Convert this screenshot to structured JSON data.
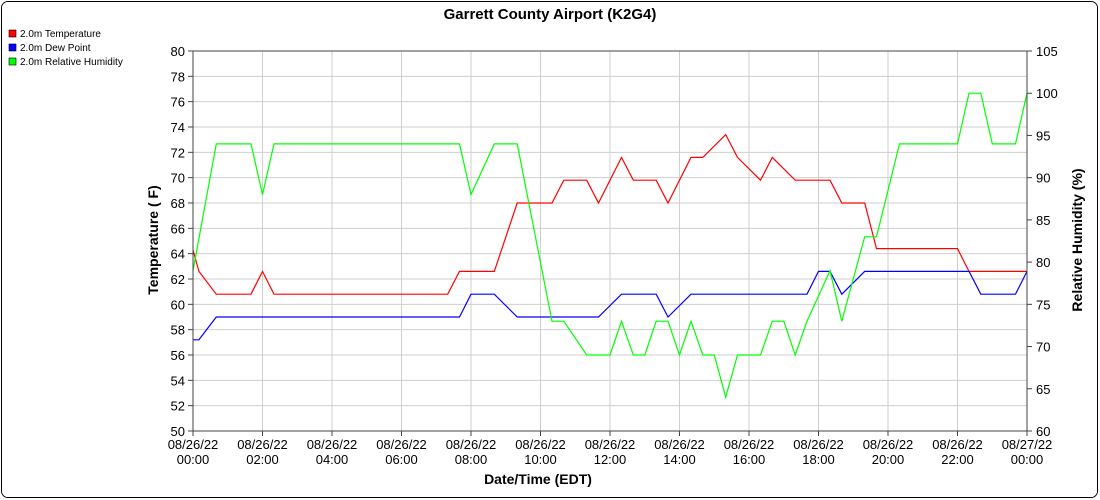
{
  "chart_data": {
    "type": "line",
    "title": "Garrett County Airport (K2G4)",
    "xlabel": "Date/Time (EDT)",
    "ylabel_left": "Temperature ( F)",
    "ylabel_right": "Relative Humidity (%)",
    "grid": true,
    "legend_position": "top-left",
    "y_left": {
      "min": 50,
      "max": 80,
      "ticks": [
        "50",
        "52",
        "54",
        "56",
        "58",
        "60",
        "62",
        "64",
        "66",
        "68",
        "70",
        "72",
        "74",
        "76",
        "78",
        "80"
      ]
    },
    "y_right": {
      "min": 60,
      "max": 105,
      "ticks": [
        "60",
        "65",
        "70",
        "75",
        "80",
        "85",
        "90",
        "95",
        "100",
        "105"
      ]
    },
    "x_range_hours": [
      0,
      24
    ],
    "x_ticks": [
      {
        "h": 0,
        "date": "08/26/22",
        "time": "00:00"
      },
      {
        "h": 2,
        "date": "08/26/22",
        "time": "02:00"
      },
      {
        "h": 4,
        "date": "08/26/22",
        "time": "04:00"
      },
      {
        "h": 6,
        "date": "08/26/22",
        "time": "06:00"
      },
      {
        "h": 8,
        "date": "08/26/22",
        "time": "08:00"
      },
      {
        "h": 10,
        "date": "08/26/22",
        "time": "10:00"
      },
      {
        "h": 12,
        "date": "08/26/22",
        "time": "12:00"
      },
      {
        "h": 14,
        "date": "08/26/22",
        "time": "14:00"
      },
      {
        "h": 16,
        "date": "08/26/22",
        "time": "16:00"
      },
      {
        "h": 18,
        "date": "08/26/22",
        "time": "18:00"
      },
      {
        "h": 20,
        "date": "08/26/22",
        "time": "20:00"
      },
      {
        "h": 22,
        "date": "08/26/22",
        "time": "22:00"
      },
      {
        "h": 24,
        "date": "08/27/22",
        "time": "00:00"
      }
    ],
    "series": [
      {
        "name": "2.0m Temperature",
        "color": "#ff0000",
        "axis": "left",
        "x": [
          0,
          0.17,
          0.67,
          1.67,
          2.0,
          2.33,
          7.33,
          7.67,
          8.67,
          9.33,
          9.67,
          10.33,
          10.67,
          11.33,
          11.67,
          12.33,
          12.67,
          13.33,
          13.67,
          14.33,
          14.67,
          15.33,
          15.67,
          16.33,
          16.67,
          17.33,
          17.67,
          18.33,
          18.67,
          19.33,
          19.67,
          20.33,
          20.67,
          21.67,
          22.0,
          22.33,
          23.67,
          24.0
        ],
        "values": [
          64.3,
          62.6,
          60.8,
          60.8,
          62.6,
          60.8,
          60.8,
          62.6,
          62.6,
          68.0,
          68.0,
          68.0,
          69.8,
          69.8,
          68.0,
          71.6,
          69.8,
          69.8,
          68.0,
          71.6,
          71.6,
          73.4,
          71.6,
          69.8,
          71.6,
          69.8,
          69.8,
          69.8,
          68.0,
          68.0,
          64.4,
          64.4,
          64.4,
          64.4,
          64.4,
          62.6,
          62.6,
          62.6
        ]
      },
      {
        "name": "2.0m Dew Point",
        "color": "#0000ff",
        "axis": "left",
        "x": [
          0,
          0.17,
          0.67,
          1.67,
          2.33,
          7.33,
          7.67,
          8.0,
          8.67,
          9.33,
          10.33,
          11.33,
          11.67,
          12.33,
          12.67,
          13.33,
          13.67,
          14.33,
          14.67,
          15.33,
          15.67,
          16.33,
          16.67,
          17.33,
          17.67,
          18.0,
          18.33,
          18.67,
          19.33,
          20.0,
          21.33,
          22.0,
          22.33,
          22.67,
          23.67,
          24.0
        ],
        "values": [
          57.2,
          57.2,
          59.0,
          59.0,
          59.0,
          59.0,
          59.0,
          60.8,
          60.8,
          59.0,
          59.0,
          59.0,
          59.0,
          60.8,
          60.8,
          60.8,
          59.0,
          60.8,
          60.8,
          60.8,
          60.8,
          60.8,
          60.8,
          60.8,
          60.8,
          62.6,
          62.6,
          60.8,
          62.6,
          62.6,
          62.6,
          62.6,
          62.6,
          60.8,
          60.8,
          62.6
        ]
      },
      {
        "name": "2.0m Relative Humidity",
        "color": "#00ff00",
        "axis": "right",
        "x": [
          0,
          0.67,
          1.67,
          2.0,
          2.33,
          7.33,
          7.67,
          8.0,
          8.67,
          9.33,
          10.33,
          10.67,
          11.33,
          11.67,
          12.0,
          12.33,
          12.67,
          13.0,
          13.33,
          13.67,
          14.0,
          14.33,
          14.67,
          15.0,
          15.33,
          15.67,
          16.33,
          16.67,
          17.0,
          17.33,
          17.67,
          18.33,
          18.67,
          19.33,
          19.67,
          20.33,
          21.33,
          21.67,
          22.0,
          22.33,
          22.67,
          23.0,
          23.67,
          24.0
        ],
        "values": [
          79.0,
          94.0,
          94.0,
          88.0,
          94.0,
          94.0,
          94.0,
          88.0,
          94.0,
          94.0,
          73.0,
          73.0,
          69.0,
          69.0,
          69.0,
          73.0,
          69.0,
          69.0,
          73.0,
          73.0,
          69.0,
          73.0,
          69.0,
          69.0,
          64.0,
          69.0,
          69.0,
          73.0,
          73.0,
          69.0,
          73.0,
          79.0,
          73.0,
          83.0,
          83.0,
          94.0,
          94.0,
          94.0,
          94.0,
          100.0,
          100.0,
          94.0,
          94.0,
          100.0
        ]
      }
    ]
  }
}
